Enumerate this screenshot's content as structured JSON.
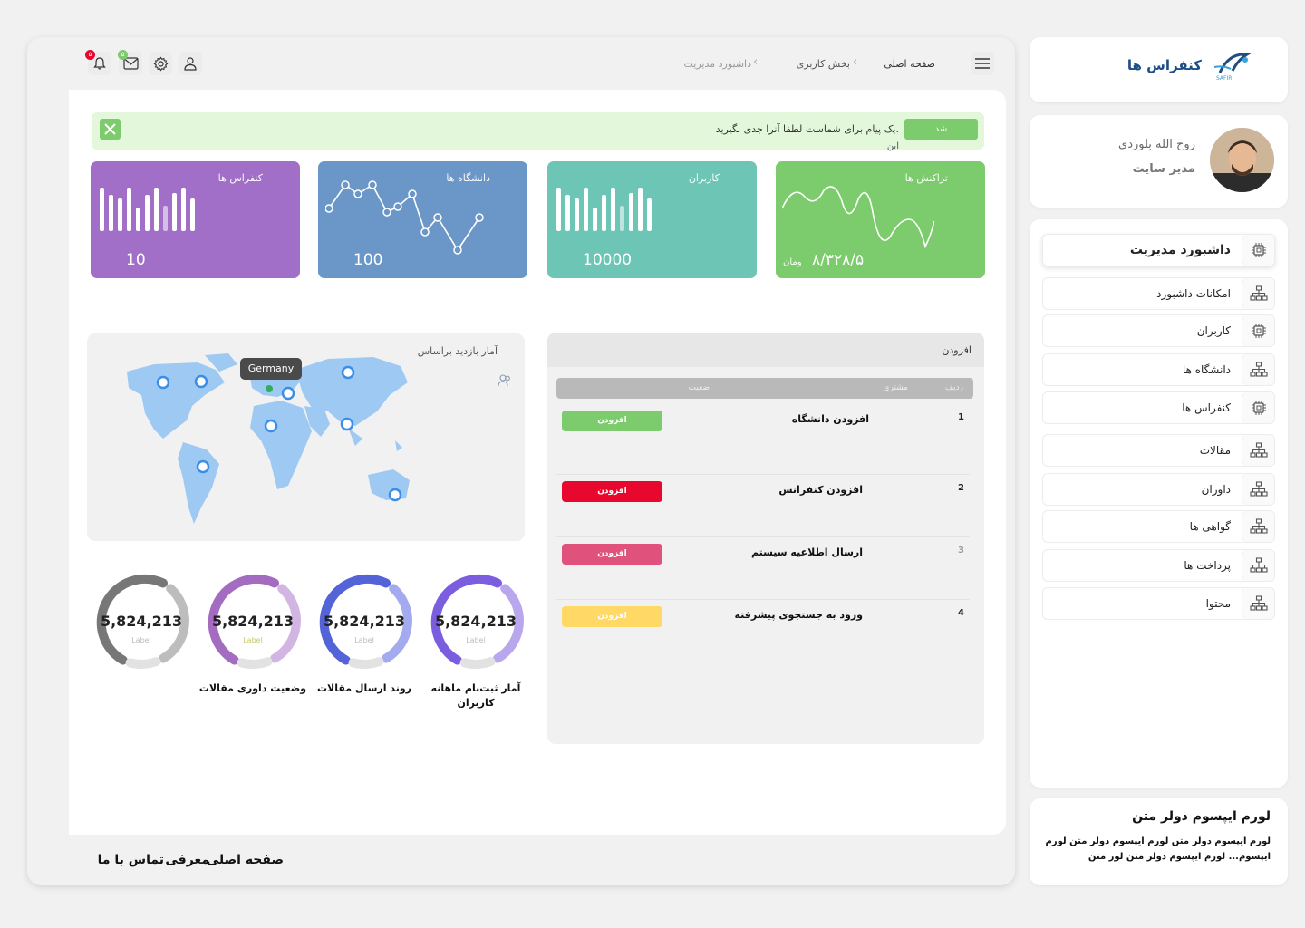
{
  "brand": {
    "name": "کنفراس ها",
    "logo_text": "SAFIR"
  },
  "user": {
    "name": "روح الله بلوردی",
    "role": "مدیر سایت"
  },
  "menu": [
    {
      "label": "داشبورد مدیریت",
      "icon": "chip-icon"
    },
    {
      "label": "امکانات داشبورد",
      "icon": "sitemap-icon"
    },
    {
      "label": "کاربران",
      "icon": "chip-icon"
    },
    {
      "label": "دانشگاه ها",
      "icon": "sitemap-icon"
    },
    {
      "label": "کنفراس ها",
      "icon": "chip-icon"
    },
    {
      "label": "مقالات",
      "icon": "sitemap-icon"
    },
    {
      "label": "داوران",
      "icon": "sitemap-icon"
    },
    {
      "label": "گواهی ها",
      "icon": "sitemap-icon"
    },
    {
      "label": "پرداخت ها",
      "icon": "sitemap-icon"
    },
    {
      "label": "محتوا",
      "icon": "sitemap-icon"
    }
  ],
  "side_box": {
    "title": "لورم ایپسوم دولر متن",
    "text": "لورم ایپسوم دولر متن لورم ایپسوم دولر متن لورم ایپسوم... لورم ایپسوم دولر متن لور متن"
  },
  "topbar": {
    "badge_mail": "۵",
    "badge_bell": "۵"
  },
  "breadcrumb": {
    "home": "صفحه اصلی",
    "section": "بخش کاربری",
    "current": "داشبورد مدیریت"
  },
  "alert": {
    "button": "شد",
    "message": "یک پیام برای شماست لطفا آنرا جدی نگیرید.",
    "extra": "این"
  },
  "stats": [
    {
      "title": "تراکنش ها",
      "value": "۸/۳۲۸/۵",
      "unit": "ومان",
      "color": "#7ccb6c"
    },
    {
      "title": "کاربران",
      "value": "10000",
      "color": "#6dc6b5"
    },
    {
      "title": "دانشگاه ها",
      "value": "100",
      "color": "#6a96c8"
    },
    {
      "title": "کنفراس ها",
      "value": "10",
      "color": "#a16ec8"
    }
  ],
  "table": {
    "title": "افزودن",
    "headers": [
      "ردیف",
      "مشتری",
      "ضعیت"
    ],
    "rows": [
      {
        "num": "1",
        "title": "افزودن دانشگاه",
        "status": "افزودن",
        "color": "#7ccb6c"
      },
      {
        "num": "2",
        "title": "افزودن کنفرانس",
        "status": "افزودن",
        "color": "#e8082e"
      },
      {
        "num": "3",
        "title": "ارسال اطلاعیه سیستم",
        "status": "افزودن",
        "color": "#e0517c"
      },
      {
        "num": "4",
        "title": "ورود به جستجوی پیشرفته",
        "status": "افزودن",
        "color": "#ffd866"
      }
    ]
  },
  "map": {
    "title": "آمار بازدید براساس",
    "tooltip": "Germany"
  },
  "gauges": [
    {
      "value": "5,824,213",
      "sub": "Label",
      "caption": "آمار ثبت‌نام ماهانه کاربران",
      "main": "#7b5ee0",
      "light": "#b9a7ee"
    },
    {
      "value": "5,824,213",
      "sub": "Label",
      "caption": "روند ارسال مقالات",
      "main": "#5563d8",
      "light": "#a3aaf0"
    },
    {
      "value": "5,824,213",
      "sub": "Label",
      "caption": "وضعیت داوری مقالات",
      "main": "#a36cc0",
      "light": "#d3b5e3"
    },
    {
      "value": "5,824,213",
      "sub": "Label",
      "caption": "",
      "main": "#777777",
      "light": "#bdbdbd"
    }
  ],
  "footer": {
    "home": "صفحه اصلی",
    "about": "معرفی",
    "contact": "تماس با ما"
  }
}
